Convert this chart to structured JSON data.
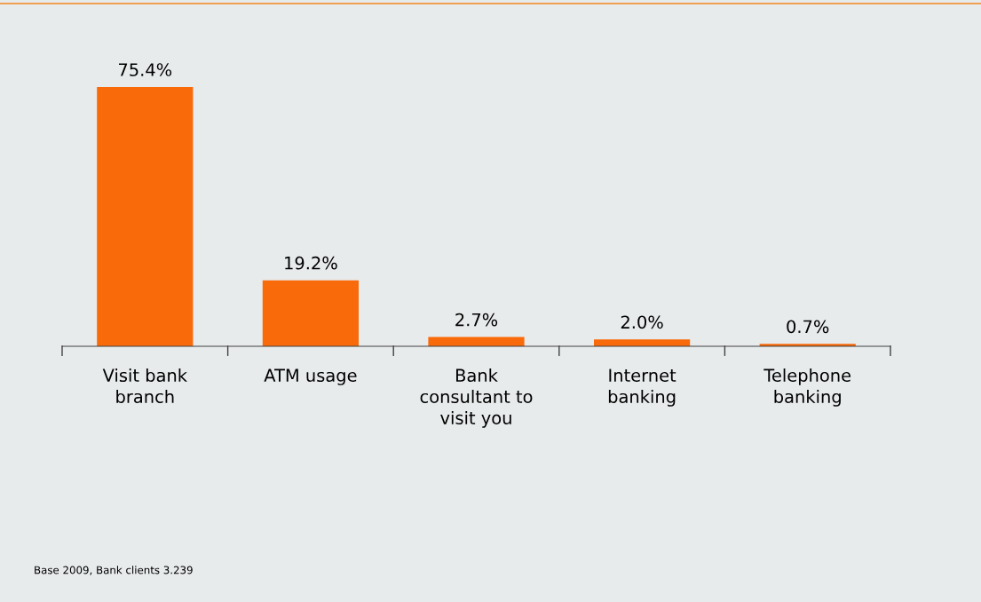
{
  "chart_data": {
    "type": "bar",
    "categories": [
      "Visit bank\nbranch",
      "ATM usage",
      "Bank\nconsultant to\nvisit you",
      "Internet\nbanking",
      "Telephone\nbanking"
    ],
    "values": [
      75.4,
      19.2,
      2.7,
      2.0,
      0.7
    ],
    "color": "#f96a0a",
    "value_labels": [
      "75.4%",
      "19.2%",
      "2.7%",
      "2.0%",
      "0.7%"
    ],
    "tick_labels": "x",
    "grid": false,
    "legend": false,
    "annotations": [
      "Base 2009, Bank clients 3.239"
    ]
  }
}
